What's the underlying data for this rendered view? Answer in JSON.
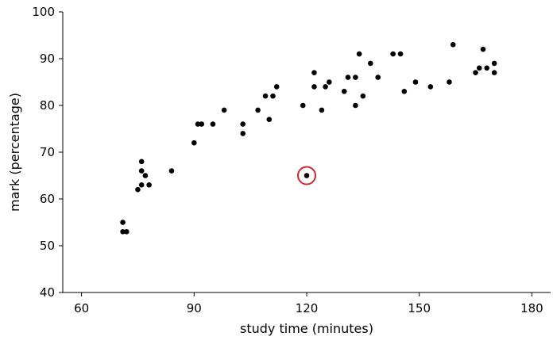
{
  "chart_data": {
    "type": "scatter",
    "xlabel": "study time (minutes)",
    "ylabel": "mark (percentage)",
    "xlim": [
      55,
      185
    ],
    "ylim": [
      40,
      100
    ],
    "x_ticks": [
      60,
      90,
      120,
      150,
      180
    ],
    "y_ticks": [
      40,
      50,
      60,
      70,
      80,
      90,
      100
    ],
    "grid": false,
    "point_color": "#000000",
    "highlight_color": "#d62728",
    "points": [
      {
        "x": 71,
        "y": 55
      },
      {
        "x": 71,
        "y": 53
      },
      {
        "x": 72,
        "y": 53
      },
      {
        "x": 75,
        "y": 62
      },
      {
        "x": 76,
        "y": 68
      },
      {
        "x": 76,
        "y": 66
      },
      {
        "x": 76,
        "y": 63
      },
      {
        "x": 77,
        "y": 65
      },
      {
        "x": 78,
        "y": 63
      },
      {
        "x": 84,
        "y": 66
      },
      {
        "x": 90,
        "y": 72
      },
      {
        "x": 91,
        "y": 76
      },
      {
        "x": 92,
        "y": 76
      },
      {
        "x": 95,
        "y": 76
      },
      {
        "x": 98,
        "y": 79
      },
      {
        "x": 103,
        "y": 76
      },
      {
        "x": 103,
        "y": 74
      },
      {
        "x": 107,
        "y": 79
      },
      {
        "x": 109,
        "y": 82
      },
      {
        "x": 110,
        "y": 77
      },
      {
        "x": 111,
        "y": 82
      },
      {
        "x": 112,
        "y": 84
      },
      {
        "x": 119,
        "y": 80
      },
      {
        "x": 122,
        "y": 87
      },
      {
        "x": 122,
        "y": 84
      },
      {
        "x": 124,
        "y": 79
      },
      {
        "x": 125,
        "y": 84
      },
      {
        "x": 126,
        "y": 85
      },
      {
        "x": 130,
        "y": 83
      },
      {
        "x": 131,
        "y": 86
      },
      {
        "x": 133,
        "y": 86
      },
      {
        "x": 133,
        "y": 80
      },
      {
        "x": 134,
        "y": 91
      },
      {
        "x": 135,
        "y": 82
      },
      {
        "x": 137,
        "y": 89
      },
      {
        "x": 139,
        "y": 86
      },
      {
        "x": 143,
        "y": 91
      },
      {
        "x": 145,
        "y": 91
      },
      {
        "x": 146,
        "y": 83
      },
      {
        "x": 149,
        "y": 85
      },
      {
        "x": 153,
        "y": 84
      },
      {
        "x": 158,
        "y": 85
      },
      {
        "x": 159,
        "y": 93
      },
      {
        "x": 165,
        "y": 87
      },
      {
        "x": 166,
        "y": 88
      },
      {
        "x": 167,
        "y": 92
      },
      {
        "x": 168,
        "y": 88
      },
      {
        "x": 170,
        "y": 89
      },
      {
        "x": 170,
        "y": 87
      }
    ],
    "highlighted_point": {
      "x": 120,
      "y": 65
    }
  }
}
